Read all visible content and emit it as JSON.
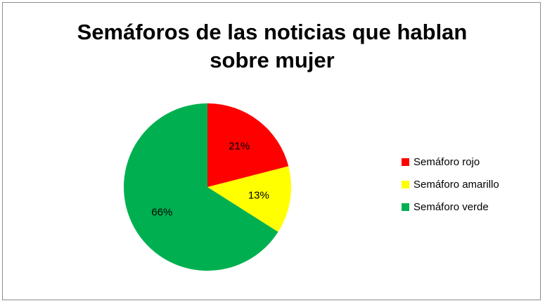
{
  "chart_data": {
    "type": "pie",
    "title_lines": [
      "Semáforos de las noticias que hablan",
      "sobre mujer"
    ],
    "series": [
      {
        "name": "Semáforo rojo",
        "value": 21,
        "label": "21%",
        "color": "#ff0000"
      },
      {
        "name": "Semáforo amarillo",
        "value": 13,
        "label": "13%",
        "color": "#ffff00"
      },
      {
        "name": "Semáforo verde",
        "value": 66,
        "label": "66%",
        "color": "#00b050"
      }
    ],
    "legend_position": "right"
  }
}
